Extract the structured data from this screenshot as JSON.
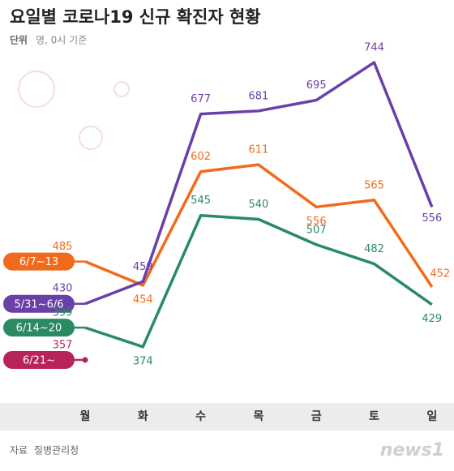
{
  "chart_data": {
    "type": "line",
    "title": "요일별 코로나19 신규 확진자 현황",
    "unit_label": "단위",
    "subtitle": "명, 0시 기준",
    "source_label": "자료",
    "source": "질병관리청",
    "logo": "news1",
    "categories": [
      "월",
      "화",
      "수",
      "목",
      "금",
      "토",
      "일"
    ],
    "ylim": [
      300,
      800
    ],
    "series": [
      {
        "name": "6/7~13",
        "color": "#f26b1d",
        "values": [
          485,
          454,
          602,
          611,
          556,
          565,
          452
        ]
      },
      {
        "name": "5/31~6/6",
        "color": "#6a3fa8",
        "values": [
          430,
          459,
          677,
          681,
          695,
          744,
          556
        ]
      },
      {
        "name": "6/14~20",
        "color": "#2a8a64",
        "values": [
          399,
          374,
          545,
          540,
          507,
          482,
          429
        ]
      },
      {
        "name": "6/21~",
        "color": "#b8245a",
        "values": [
          357,
          null,
          null,
          null,
          null,
          null,
          null
        ]
      }
    ]
  }
}
